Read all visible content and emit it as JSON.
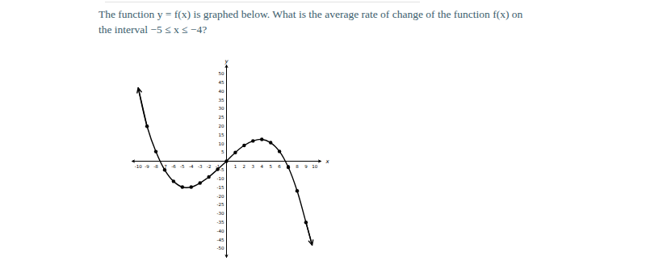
{
  "chart_data": {
    "type": "line",
    "title": "The function y = f(x) is graphed below. What is the average rate of change of the function f(x) on the interval −5 ≤ x ≤ −4?",
    "x_label": "x",
    "y_label": "y",
    "xlim": [
      -10.7,
      10.7
    ],
    "ylim": [
      -55,
      55
    ],
    "xticks": [
      -10,
      -9,
      -8,
      -7,
      -6,
      -5,
      -4,
      -3,
      -2,
      -1,
      1,
      2,
      3,
      4,
      5,
      6,
      7,
      8,
      9,
      10
    ],
    "yticks": [
      -50,
      -45,
      -40,
      -35,
      -30,
      -25,
      -20,
      -15,
      -10,
      -5,
      5,
      10,
      15,
      20,
      25,
      30,
      35,
      40,
      45,
      50
    ],
    "grid": false,
    "series": [
      {
        "type": "line",
        "marker": "arrow",
        "color": "#000000",
        "x": [
          -10,
          -9,
          -8,
          -7,
          -6,
          -5,
          -4,
          -3,
          -2,
          -1,
          0,
          1,
          2,
          3,
          4,
          5,
          6,
          7,
          8,
          9,
          9.7
        ],
        "values": [
          42,
          20,
          5.5,
          -5,
          -11.5,
          -14.8,
          -14.8,
          -12.5,
          -9,
          -4.6,
          0,
          5,
          9,
          11.6,
          12.5,
          10.6,
          5.6,
          -3.5,
          -17,
          -35,
          -48
        ]
      },
      {
        "type": "scatter",
        "marker": "circle",
        "color": "#000000",
        "x": [
          -9,
          -8,
          -7,
          -6,
          -5,
          -4,
          -3,
          -2,
          -1,
          0,
          1,
          2,
          3,
          4,
          5,
          6,
          7,
          8,
          9
        ],
        "values": [
          20,
          5.5,
          -5,
          -11.5,
          -14.8,
          -14.8,
          -12.5,
          -9,
          -4.6,
          0,
          5,
          9,
          11.6,
          12.5,
          10.6,
          5.6,
          -3.5,
          -17,
          -35
        ]
      }
    ]
  }
}
